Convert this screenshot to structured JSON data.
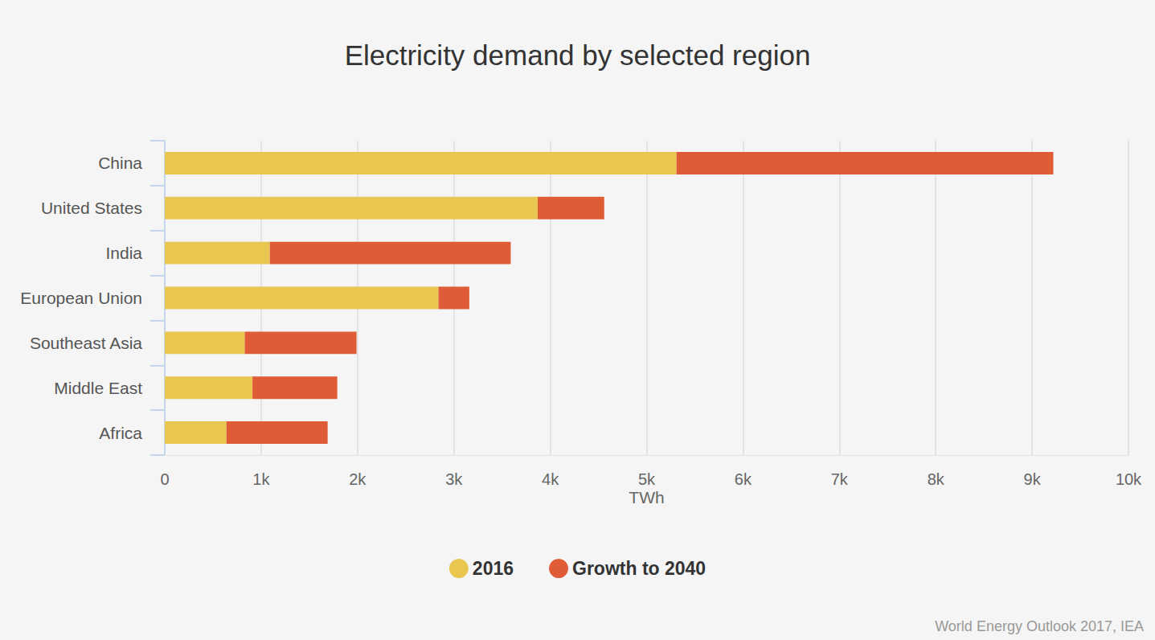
{
  "chart_data": {
    "type": "bar",
    "orientation": "horizontal",
    "stacked": true,
    "title": "Electricity demand by selected region",
    "x_label": "TWh",
    "source": "World Energy Outlook 2017, IEA",
    "categories": [
      "China",
      "United States",
      "India",
      "European Union",
      "Southeast Asia",
      "Middle East",
      "Africa"
    ],
    "series": [
      {
        "name": "2016",
        "color": "#e8c650",
        "values": [
          5310,
          3870,
          1090,
          2840,
          830,
          910,
          640
        ]
      },
      {
        "name": "Growth to 2040",
        "color": "#e05c36",
        "values": [
          3910,
          690,
          2500,
          320,
          1160,
          880,
          1050
        ]
      }
    ],
    "xlim": [
      0,
      10000
    ],
    "xticks": [
      0,
      {
        "value": 1000,
        "label": "1k"
      },
      {
        "value": 2000,
        "label": "2k"
      },
      {
        "value": 3000,
        "label": "3k"
      },
      {
        "value": 4000,
        "label": "4k"
      },
      {
        "value": 5000,
        "label": "5k"
      },
      {
        "value": 6000,
        "label": "6k"
      },
      {
        "value": 7000,
        "label": "7k"
      },
      {
        "value": 8000,
        "label": "8k"
      },
      {
        "value": 9000,
        "label": "9k"
      },
      {
        "value": 10000,
        "label": "10k"
      }
    ],
    "grid": true,
    "legend": "bottom"
  }
}
